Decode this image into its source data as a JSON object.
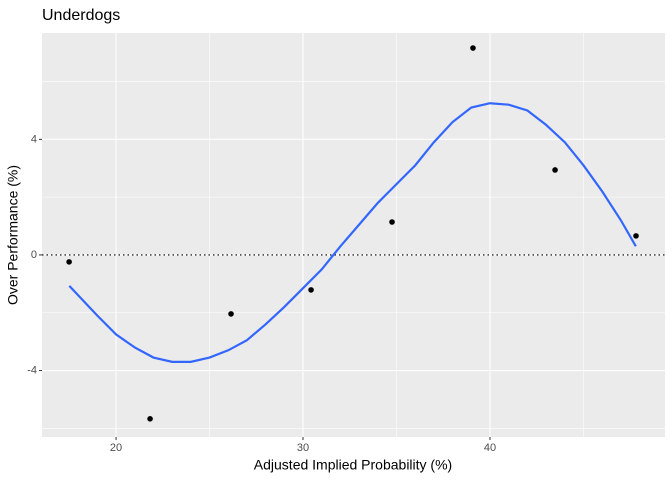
{
  "chart_data": {
    "type": "scatter",
    "title": "Underdogs",
    "x_label": "Adjusted Implied Probability (%)",
    "y_label": "Over Performance (%)",
    "xlim": [
      16.04,
      49.36
    ],
    "ylim": [
      -6.3,
      7.68
    ],
    "xticks": [
      20,
      30,
      40
    ],
    "yticks": [
      -4,
      0,
      4
    ],
    "minor_xticks": [
      25,
      35,
      45
    ],
    "minor_yticks": [
      -6,
      -2,
      2,
      6
    ],
    "grid": true,
    "hline": 0,
    "points": {
      "color": "#000000",
      "x": [
        17.49,
        21.82,
        26.15,
        30.43,
        34.76,
        39.09,
        43.48,
        47.81
      ],
      "values": [
        -0.24,
        -5.67,
        -2.04,
        -1.21,
        1.14,
        7.16,
        2.94,
        0.66
      ]
    },
    "smooth": {
      "color": "#3366ff",
      "x": [
        17.5,
        19,
        20,
        21,
        22,
        23,
        24,
        25,
        26,
        27,
        28,
        29,
        30,
        31,
        32,
        33,
        34,
        35,
        36,
        37,
        38,
        39,
        40,
        41,
        42,
        43,
        44,
        45,
        46,
        47,
        47.8
      ],
      "values": [
        -1.07,
        -2.1,
        -2.75,
        -3.2,
        -3.55,
        -3.7,
        -3.7,
        -3.55,
        -3.3,
        -2.95,
        -2.4,
        -1.8,
        -1.15,
        -0.5,
        0.3,
        1.05,
        1.8,
        2.45,
        3.1,
        3.9,
        4.6,
        5.1,
        5.25,
        5.2,
        5.0,
        4.5,
        3.9,
        3.1,
        2.2,
        1.2,
        0.3
      ]
    }
  }
}
